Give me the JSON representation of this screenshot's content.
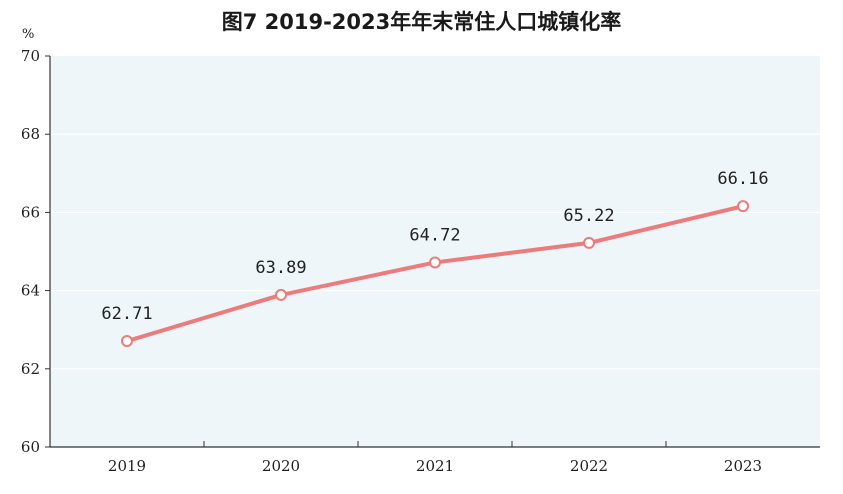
{
  "chart_data": {
    "type": "line",
    "title": "图7   2019-2023年年末常住人口城镇化率",
    "ylabel": "%",
    "xlabel": "",
    "categories": [
      "2019",
      "2020",
      "2021",
      "2022",
      "2023"
    ],
    "series": [
      {
        "values": [
          62.71,
          63.89,
          64.72,
          65.22,
          66.16
        ],
        "labels": [
          "62.71",
          "63.89",
          "64.72",
          "65.22",
          "66.16"
        ]
      }
    ],
    "ylim": [
      60,
      70
    ],
    "yticks": [
      "60",
      "62",
      "64",
      "66",
      "68",
      "70"
    ],
    "grid": true,
    "colors": {
      "line": "#ee7b7b",
      "plot_bg": "#eef6f9",
      "grid": "#ffffff",
      "axis": "#333333"
    }
  }
}
